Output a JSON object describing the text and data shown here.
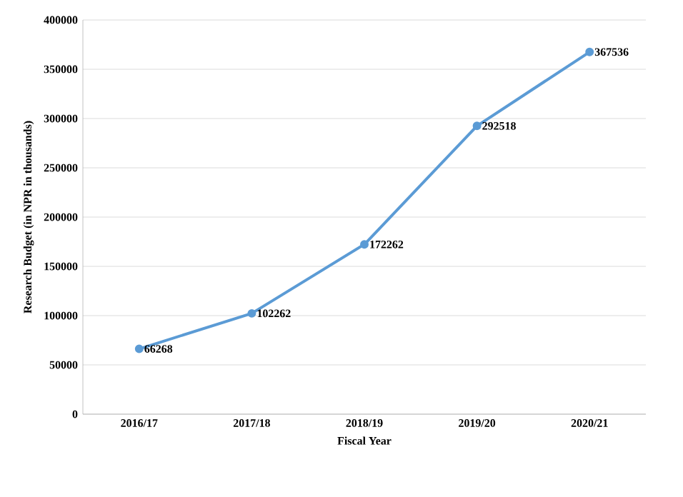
{
  "chart_data": {
    "type": "line",
    "xlabel": "Fiscal Year",
    "ylabel": "Research Budget (in NPR in thousands)",
    "categories": [
      "2016/17",
      "2017/18",
      "2018/19",
      "2019/20",
      "2020/21"
    ],
    "series": [
      {
        "color": "#5b9bd5",
        "values": [
          66268,
          102262,
          172262,
          292518,
          367536
        ]
      }
    ],
    "ylim": [
      0,
      400000
    ],
    "yticks": [
      0,
      50000,
      100000,
      150000,
      200000,
      250000,
      300000,
      350000,
      400000
    ],
    "grid": "y",
    "marker": "circle",
    "line_style": "solid",
    "data_labels": true
  }
}
